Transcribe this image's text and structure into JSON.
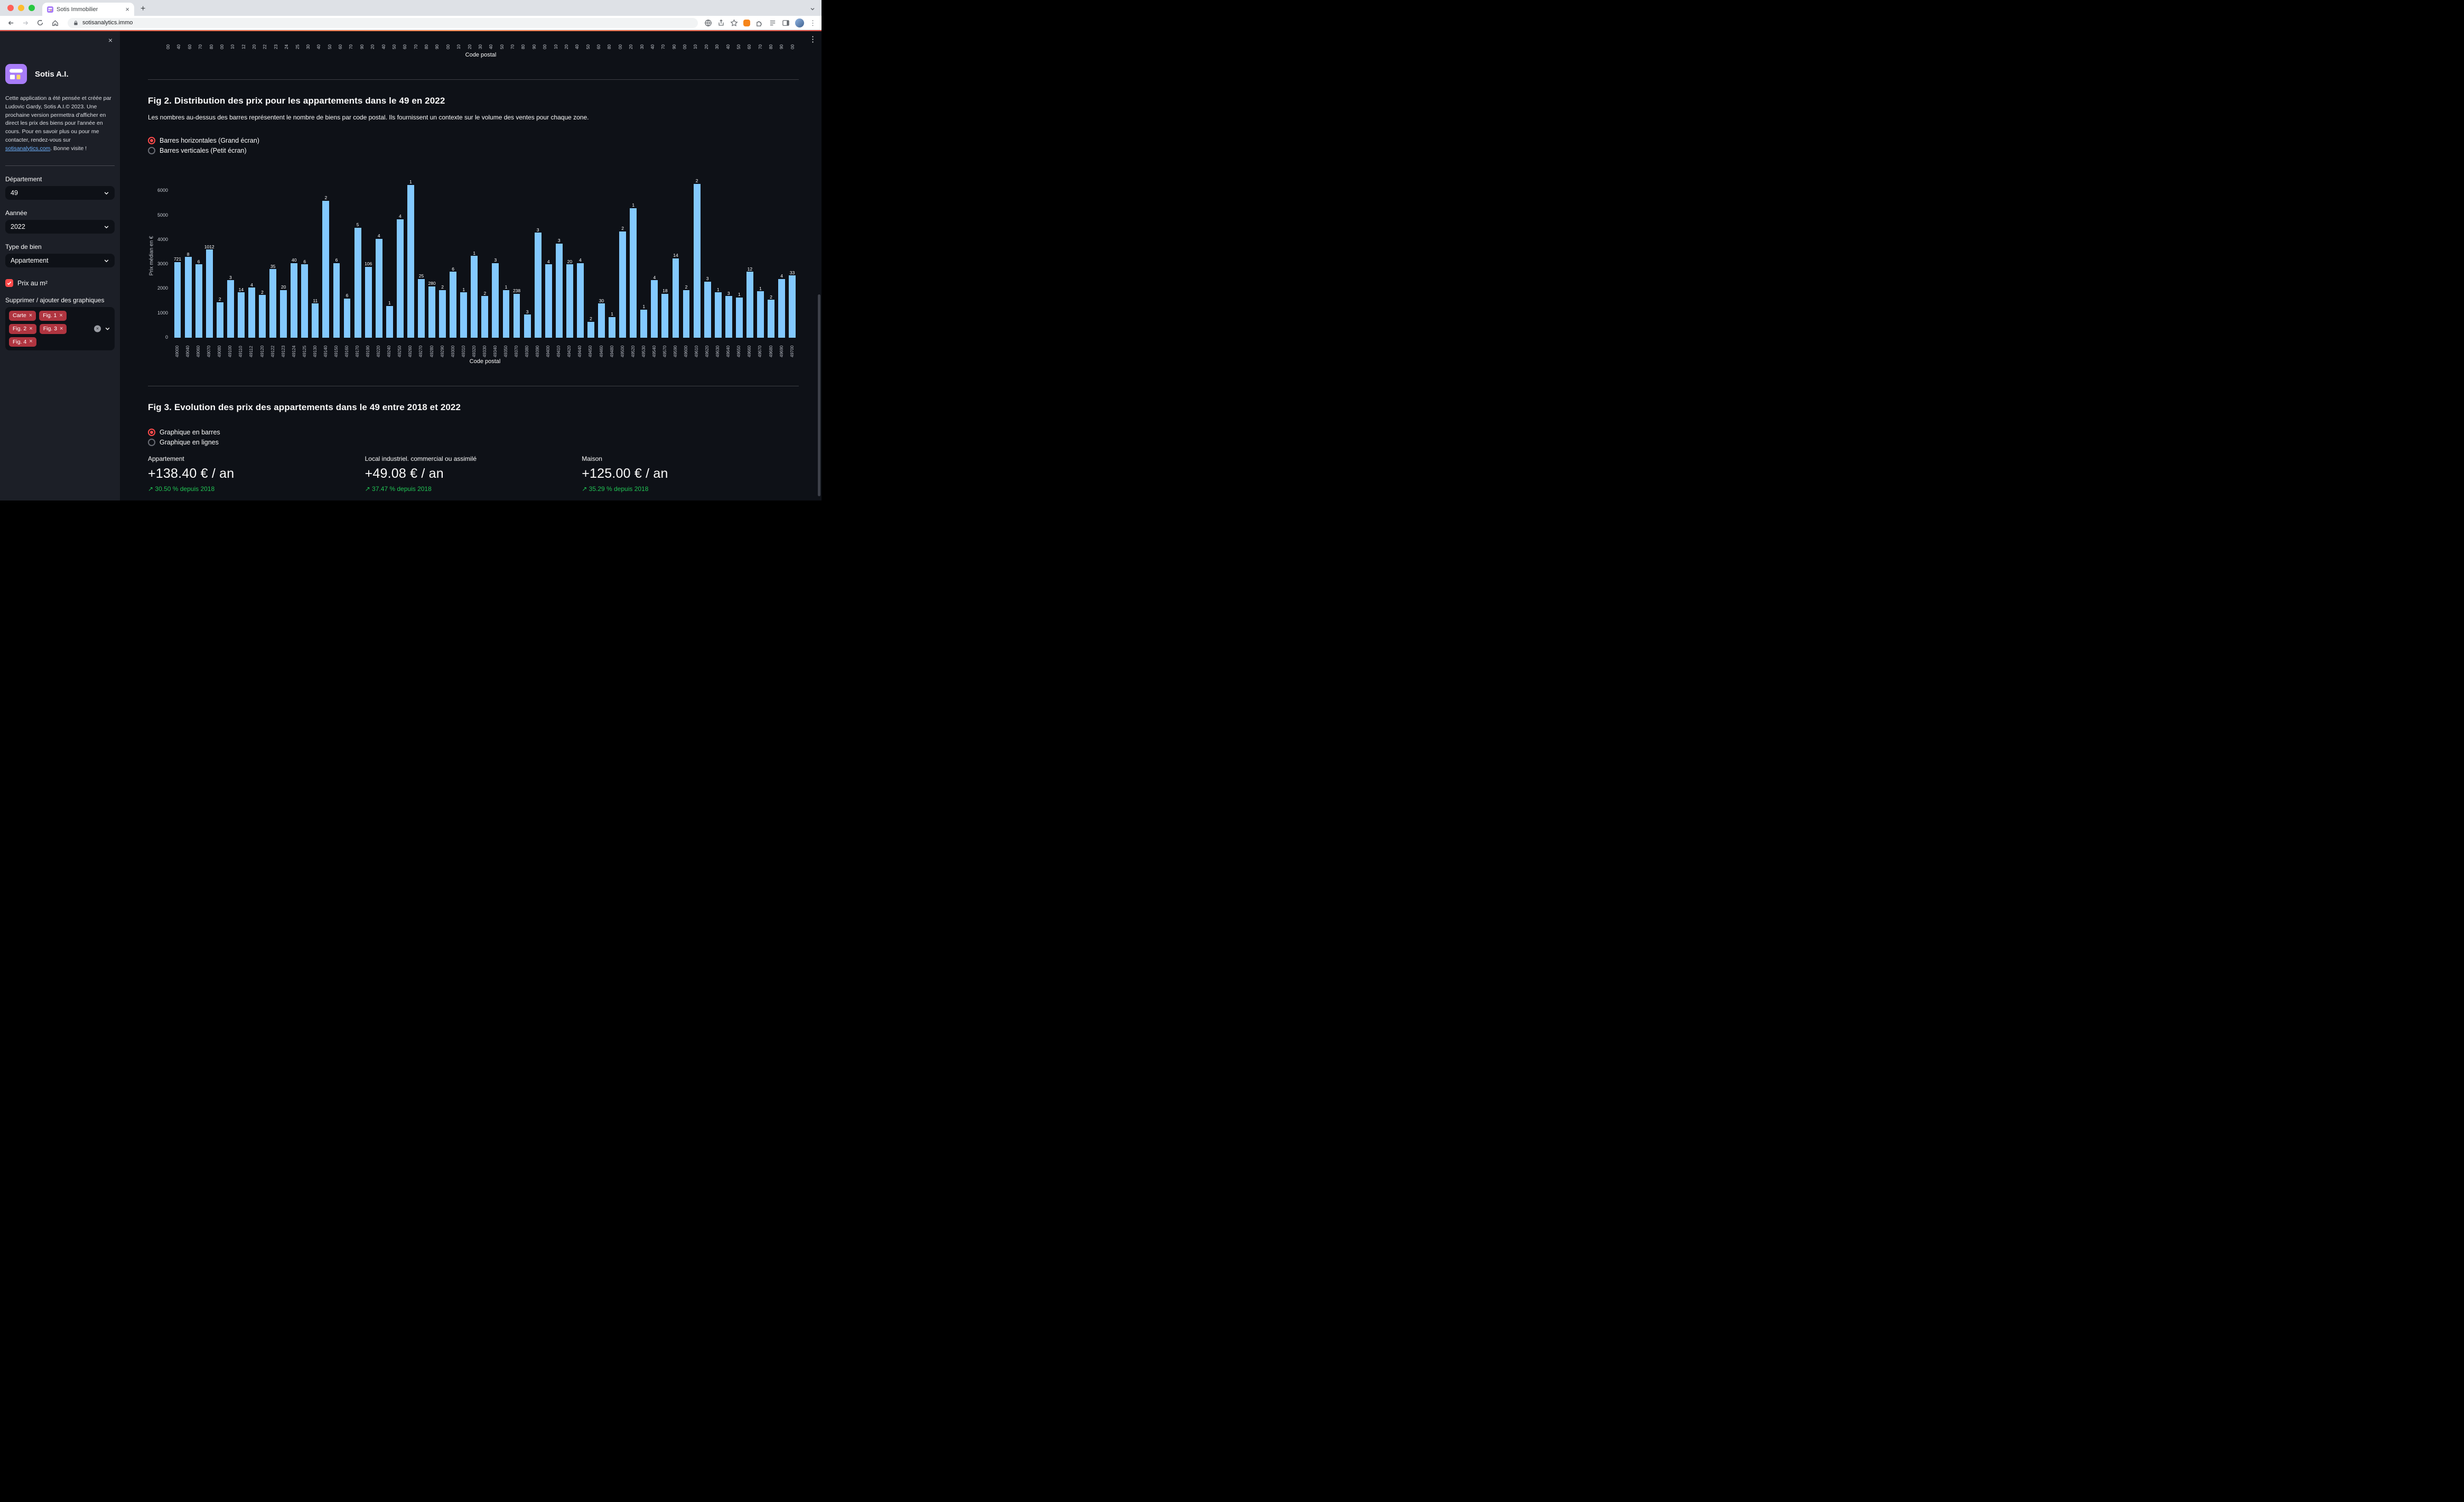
{
  "browser": {
    "tab_title": "Sotis Immobilier",
    "url": "sotisanalytics.immo"
  },
  "glyphs": {
    "kebab": "⋮",
    "close_x": "×",
    "clear_x": "×",
    "new_tab": "+",
    "arrow_up_right": "↗"
  },
  "colors": {
    "accent": "#ff4b4b",
    "bar": "#83c9ff",
    "delta_green": "#21c354"
  },
  "sidebar": {
    "app_name": "Sotis A.I.",
    "about": {
      "before_link": "Cette application a été pensée et créée par Ludovic Gardy, Sotis A.I.© 2023. Une prochaine version permettra d'afficher en direct les prix des biens pour l'année en cours. Pour en savoir plus ou pour me contacter, rendez-vous sur ",
      "link": "sotisanalytics.com",
      "after_link": ". Bonne visite !"
    },
    "department": {
      "label": "Département",
      "value": "49"
    },
    "year": {
      "label": "Aannée",
      "value": "2022"
    },
    "property_type": {
      "label": "Type de bien",
      "value": "Appartement"
    },
    "price_checkbox": {
      "label": "Prix au m²",
      "checked": true
    },
    "charts_label": "Supprimer / ajouter des graphiques",
    "chart_tags": [
      "Carte",
      "Fig. 1",
      "Fig. 2",
      "Fig. 3",
      "Fig. 4"
    ]
  },
  "main": {
    "fig1": {
      "xlabel": "Code postal",
      "tick_fragments": [
        "00",
        "40",
        "60",
        "70",
        "80",
        "00",
        "10",
        "12",
        "20",
        "22",
        "23",
        "24",
        "25",
        "30",
        "40",
        "50",
        "60",
        "70",
        "90",
        "20",
        "40",
        "50",
        "60",
        "70",
        "80",
        "90",
        "00",
        "10",
        "20",
        "30",
        "40",
        "50",
        "70",
        "80",
        "90",
        "00",
        "10",
        "20",
        "40",
        "50",
        "60",
        "80",
        "00",
        "20",
        "30",
        "40",
        "70",
        "90",
        "00",
        "10",
        "20",
        "30",
        "40",
        "50",
        "60",
        "70",
        "80",
        "90",
        "00"
      ]
    },
    "fig2": {
      "title": "Fig 2. Distribution des prix pour les appartements dans le 49 en 2022",
      "description": "Les nombres au-dessus des barres représentent le nombre de biens par code postal. Ils fournissent un contexte sur le volume des ventes pour chaque zone.",
      "radio_options": [
        {
          "label": "Barres horizontales (Grand écran)",
          "selected": true
        },
        {
          "label": "Barres verticales (Petit écran)",
          "selected": false
        }
      ]
    },
    "fig3": {
      "title": "Fig 3. Evolution des prix des appartements dans le 49 entre 2018 et 2022",
      "radio_options": [
        {
          "label": "Graphique en barres",
          "selected": true
        },
        {
          "label": "Graphique en lignes",
          "selected": false
        }
      ],
      "metrics": [
        {
          "label": "Appartement",
          "value": "+138.40 € / an",
          "delta": "30.50 % depuis 2018"
        },
        {
          "label": "Local industriel. commercial ou assimilé",
          "value": "+49.08 € / an",
          "delta": "37.47 % depuis 2018"
        },
        {
          "label": "Maison",
          "value": "+125.00 € / an",
          "delta": "35.29 % depuis 2018"
        }
      ]
    }
  },
  "chart_data": {
    "type": "bar",
    "title": "Distribution des prix pour les appartements dans le 49 en 2022",
    "xlabel": "Code postal",
    "ylabel": "Prix médian en €",
    "yticks": [
      0,
      1000,
      2000,
      3000,
      4000,
      5000,
      6000
    ],
    "ylim": [
      0,
      6700
    ],
    "bar_color": "#83c9ff",
    "legend": false,
    "grid": false,
    "categories": [
      "49000",
      "49040",
      "49060",
      "49070",
      "49080",
      "49100",
      "49110",
      "49112",
      "49120",
      "49122",
      "49123",
      "49124",
      "49125",
      "49130",
      "49140",
      "49150",
      "49160",
      "49170",
      "49190",
      "49220",
      "49240",
      "49250",
      "49260",
      "49270",
      "49280",
      "49290",
      "49300",
      "49310",
      "49320",
      "49330",
      "49340",
      "49350",
      "49370",
      "49380",
      "49390",
      "49400",
      "49410",
      "49420",
      "49440",
      "49450",
      "49460",
      "49480",
      "49500",
      "49520",
      "49530",
      "49540",
      "49570",
      "49590",
      "49600",
      "49610",
      "49620",
      "49630",
      "49640",
      "49650",
      "49660",
      "49670",
      "49680",
      "49690",
      "49700"
    ],
    "values": [
      3100,
      3300,
      3000,
      3600,
      1450,
      2350,
      1850,
      2050,
      1750,
      2800,
      1950,
      3050,
      3000,
      1400,
      5600,
      3050,
      1600,
      4500,
      2900,
      4050,
      1300,
      4850,
      6250,
      2400,
      2100,
      1950,
      2700,
      1850,
      3350,
      1700,
      3050,
      1950,
      1800,
      950,
      4300,
      3000,
      3850,
      3000,
      3050,
      650,
      1400,
      850,
      4350,
      5300,
      1150,
      2350,
      1800,
      3250,
      1950,
      6300,
      2300,
      1850,
      1700,
      1650,
      2700,
      1900,
      1550,
      2400,
      2550
    ],
    "bar_labels": [
      721,
      8,
      6,
      1012,
      2,
      3,
      14,
      4,
      2,
      35,
      20,
      40,
      6,
      11,
      2,
      6,
      6,
      5,
      106,
      4,
      1,
      4,
      1,
      25,
      280,
      2,
      6,
      1,
      1,
      2,
      3,
      1,
      238,
      3,
      3,
      4,
      3,
      20,
      4,
      2,
      30,
      1,
      2,
      1,
      1,
      4,
      18,
      14,
      2,
      2,
      3,
      1,
      3,
      1,
      12,
      1,
      2,
      4,
      33
    ]
  }
}
